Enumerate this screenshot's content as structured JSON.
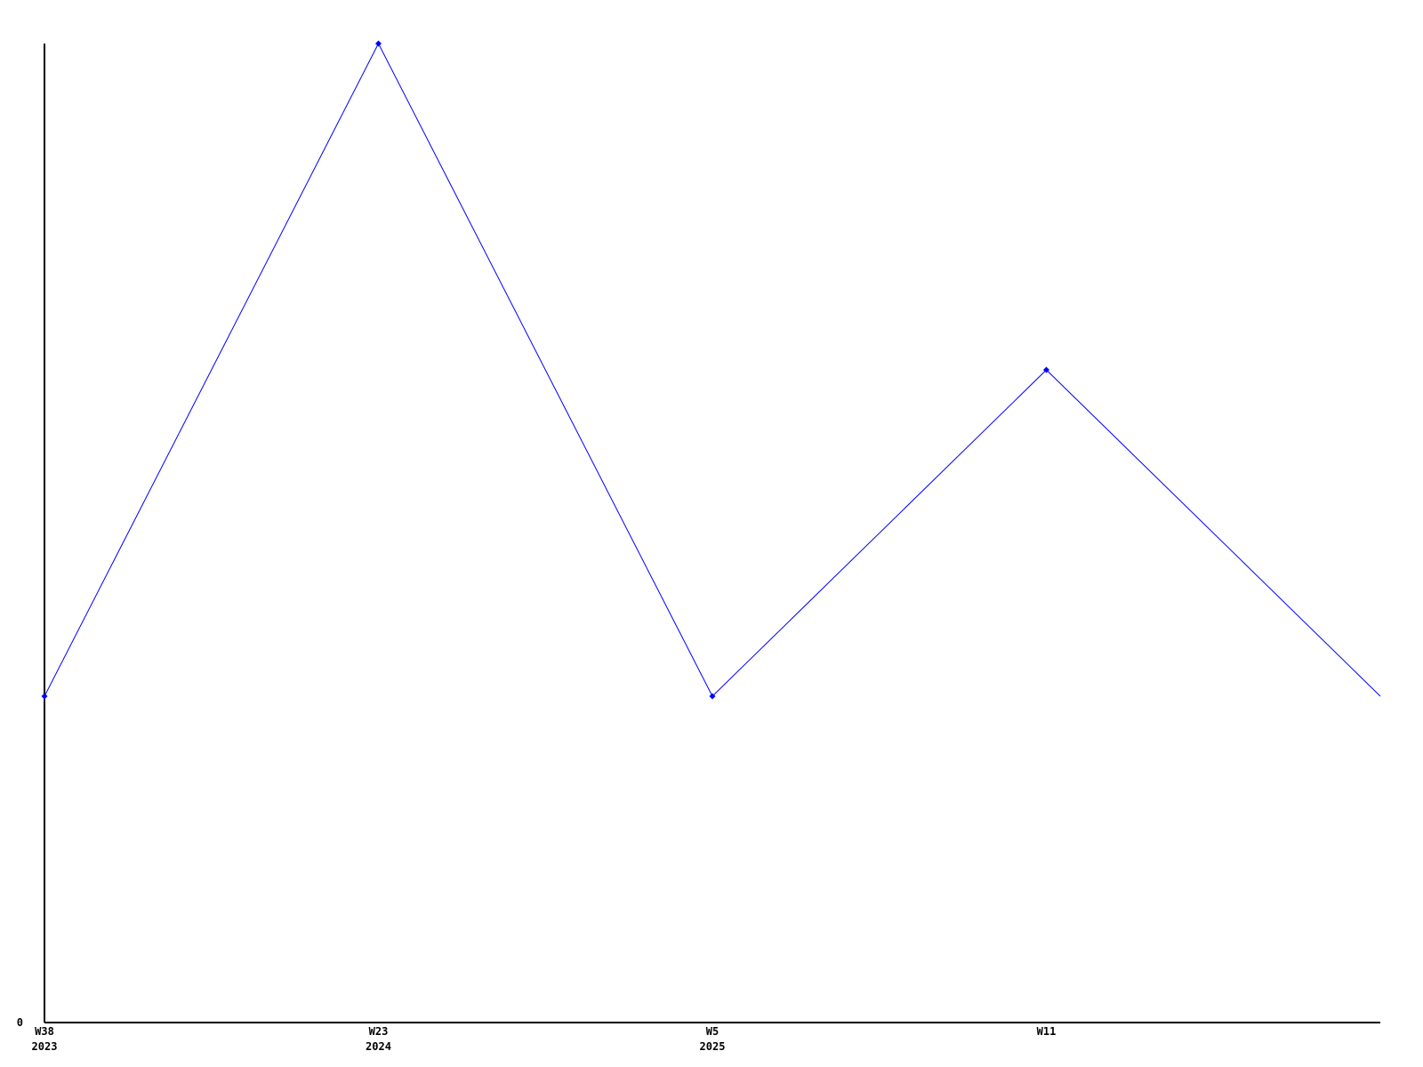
{
  "page": {
    "background_color": "#ffffff"
  },
  "chart_data": {
    "type": "line",
    "title": "",
    "xlabel": "",
    "ylabel": "",
    "categories": [
      "W38 2023",
      "W23 2024",
      "W5 2025",
      "W11",
      ""
    ],
    "x_tick_labels": [
      {
        "line1": "W38",
        "line2": "2023"
      },
      {
        "line1": "W23",
        "line2": "2024"
      },
      {
        "line1": "W5",
        "line2": "2025"
      },
      {
        "line1": "W11",
        "line2": ""
      }
    ],
    "values": [
      1,
      3,
      1,
      2,
      1
    ],
    "markers": [
      true,
      true,
      true,
      true,
      false
    ],
    "ylim": [
      0,
      3
    ],
    "y_tick_labels": [
      {
        "value": 0,
        "label": "0"
      }
    ],
    "grid": false,
    "legend": null,
    "line_color": "#0000ff",
    "marker_color": "#0000ff",
    "axis_color": "#000000",
    "text_color": "#000000"
  }
}
